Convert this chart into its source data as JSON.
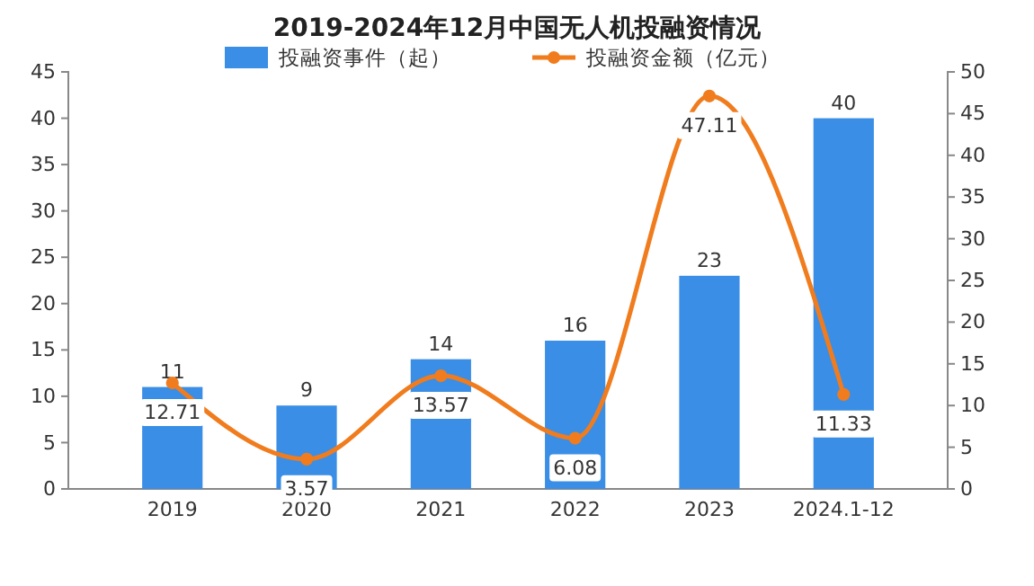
{
  "chart_data": {
    "type": "bar",
    "title": "2019-2024年12月中国无人机投融资情况",
    "categories": [
      "2019",
      "2020",
      "2021",
      "2022",
      "2023",
      "2024.1-12"
    ],
    "series": [
      {
        "name": "投融资事件（起）",
        "color": "#3a8ee6",
        "values": [
          11,
          9,
          14,
          16,
          23,
          40
        ]
      },
      {
        "name": "投融资金额（亿元）",
        "type": "line",
        "axis": "y2",
        "color": "#f07c1e",
        "values": [
          12.71,
          3.57,
          13.57,
          6.08,
          47.11,
          11.33
        ]
      }
    ],
    "ylim": [
      0,
      45
    ],
    "yticks": [
      0,
      5,
      10,
      15,
      20,
      25,
      30,
      35,
      40,
      45
    ],
    "y2lim": [
      0,
      50
    ],
    "y2ticks": [
      0,
      5,
      10,
      15,
      20,
      25,
      30,
      35,
      40,
      45,
      50
    ],
    "data_labels": true,
    "legend": "top",
    "marker": "circle",
    "grid": false
  }
}
